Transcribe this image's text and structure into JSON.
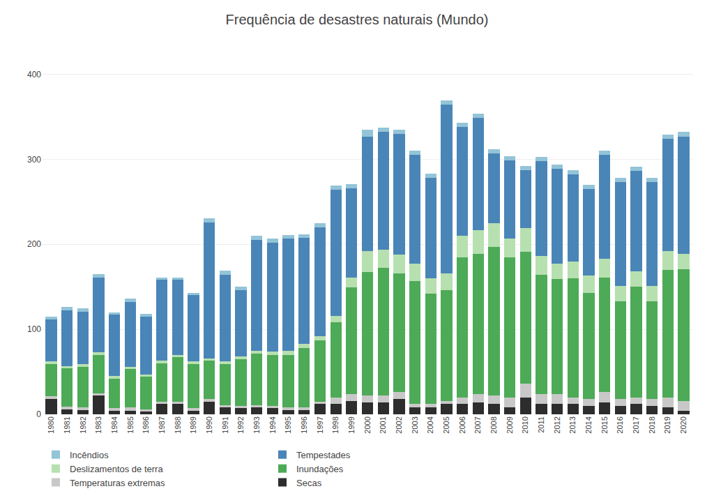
{
  "chart_data": {
    "type": "bar",
    "title": "Frequência de desastres naturais (Mundo)",
    "stacked": true,
    "grid": true,
    "legend": "bottom",
    "categories": [
      "1980",
      "1981",
      "1982",
      "1983",
      "1984",
      "1985",
      "1986",
      "1987",
      "1988",
      "1989",
      "1990",
      "1991",
      "1992",
      "1993",
      "1994",
      "1995",
      "1996",
      "1997",
      "1998",
      "1999",
      "2000",
      "2001",
      "2002",
      "2003",
      "2004",
      "2005",
      "2006",
      "2007",
      "2008",
      "2009",
      "2010",
      "2011",
      "2012",
      "2013",
      "2014",
      "2015",
      "2016",
      "2017",
      "2018",
      "2019",
      "2020"
    ],
    "ylim": [
      0,
      430
    ],
    "yticks": [
      0,
      100,
      200,
      300,
      400
    ],
    "series": [
      {
        "name": "Secas",
        "color": "#2d2d2d",
        "values": [
          18,
          6,
          5,
          22,
          4,
          4,
          3,
          12,
          12,
          4,
          15,
          8,
          7,
          8,
          7,
          5,
          5,
          12,
          12,
          16,
          14,
          14,
          18,
          8,
          8,
          12,
          12,
          14,
          12,
          8,
          20,
          12,
          12,
          12,
          10,
          14,
          10,
          12,
          10,
          8,
          4
        ]
      },
      {
        "name": "Temperaturas extremas",
        "color": "#c8c8c8",
        "values": [
          3,
          3,
          3,
          3,
          3,
          4,
          3,
          3,
          3,
          3,
          3,
          3,
          3,
          3,
          3,
          3,
          3,
          3,
          8,
          8,
          8,
          8,
          8,
          4,
          4,
          4,
          8,
          10,
          10,
          12,
          16,
          12,
          12,
          8,
          8,
          12,
          8,
          8,
          8,
          12,
          12
        ]
      },
      {
        "name": "Inundações",
        "color": "#4daa57",
        "values": [
          38,
          45,
          48,
          45,
          35,
          45,
          38,
          45,
          52,
          52,
          45,
          48,
          55,
          60,
          60,
          62,
          70,
          72,
          88,
          125,
          145,
          150,
          140,
          145,
          130,
          130,
          165,
          165,
          175,
          165,
          155,
          140,
          135,
          140,
          125,
          135,
          115,
          130,
          115,
          150,
          155
        ]
      },
      {
        "name": "Deslizamentos de terra",
        "color": "#b7e0b0",
        "values": [
          3,
          3,
          3,
          3,
          3,
          3,
          3,
          3,
          3,
          3,
          3,
          3,
          3,
          4,
          4,
          5,
          5,
          5,
          8,
          12,
          25,
          22,
          22,
          20,
          18,
          20,
          25,
          28,
          28,
          22,
          28,
          22,
          18,
          20,
          20,
          22,
          18,
          18,
          18,
          22,
          18
        ]
      },
      {
        "name": "Tempestades",
        "color": "#4a85b8",
        "values": [
          50,
          65,
          62,
          88,
          72,
          76,
          68,
          95,
          88,
          78,
          160,
          102,
          78,
          130,
          128,
          132,
          125,
          128,
          148,
          105,
          135,
          138,
          142,
          128,
          118,
          198,
          128,
          132,
          82,
          92,
          68,
          112,
          112,
          102,
          102,
          122,
          122,
          118,
          122,
          132,
          138
        ]
      },
      {
        "name": "Incêndios",
        "color": "#93c4d8",
        "values": [
          3,
          4,
          4,
          4,
          3,
          4,
          3,
          3,
          3,
          3,
          5,
          5,
          4,
          5,
          5,
          4,
          4,
          5,
          5,
          5,
          8,
          5,
          5,
          5,
          5,
          5,
          5,
          5,
          5,
          5,
          5,
          5,
          5,
          5,
          5,
          5,
          5,
          5,
          5,
          5,
          5
        ]
      }
    ]
  }
}
